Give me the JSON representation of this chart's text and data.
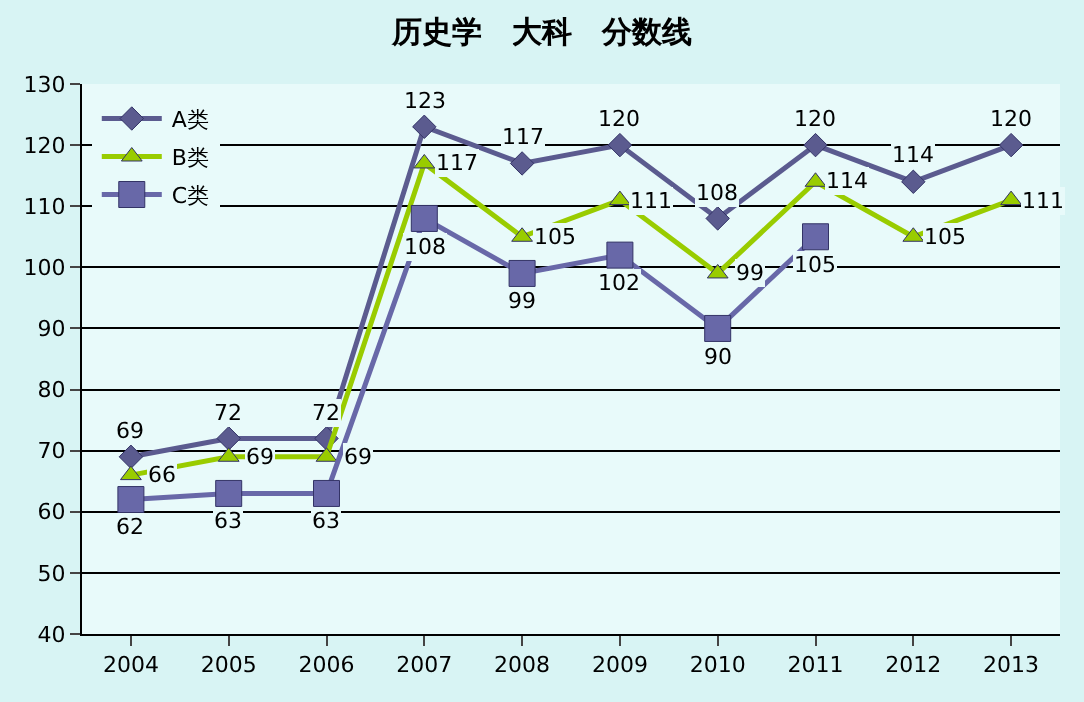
{
  "chart_data": {
    "type": "line",
    "title": "历史学　大科　分数线",
    "categories": [
      "2004",
      "2005",
      "2006",
      "2007",
      "2008",
      "2009",
      "2010",
      "2011",
      "2012",
      "2013"
    ],
    "series": [
      {
        "name": "A类",
        "color": "#5b5b8f",
        "marker": "diamond",
        "values": [
          69,
          72,
          72,
          123,
          117,
          120,
          108,
          120,
          114,
          120
        ]
      },
      {
        "name": "B类",
        "color": "#99cc00",
        "marker": "triangle",
        "values": [
          66,
          69,
          69,
          117,
          105,
          111,
          99,
          114,
          105,
          111
        ]
      },
      {
        "name": "C类",
        "color": "#6868a8",
        "marker": "square",
        "values": [
          62,
          63,
          63,
          108,
          99,
          102,
          90,
          105,
          null,
          null
        ]
      }
    ],
    "ylim": [
      40,
      130
    ],
    "yticks": [
      40,
      50,
      60,
      70,
      80,
      90,
      100,
      110,
      120,
      130
    ],
    "grid": "y",
    "legend": "top left",
    "data_labels": true
  }
}
